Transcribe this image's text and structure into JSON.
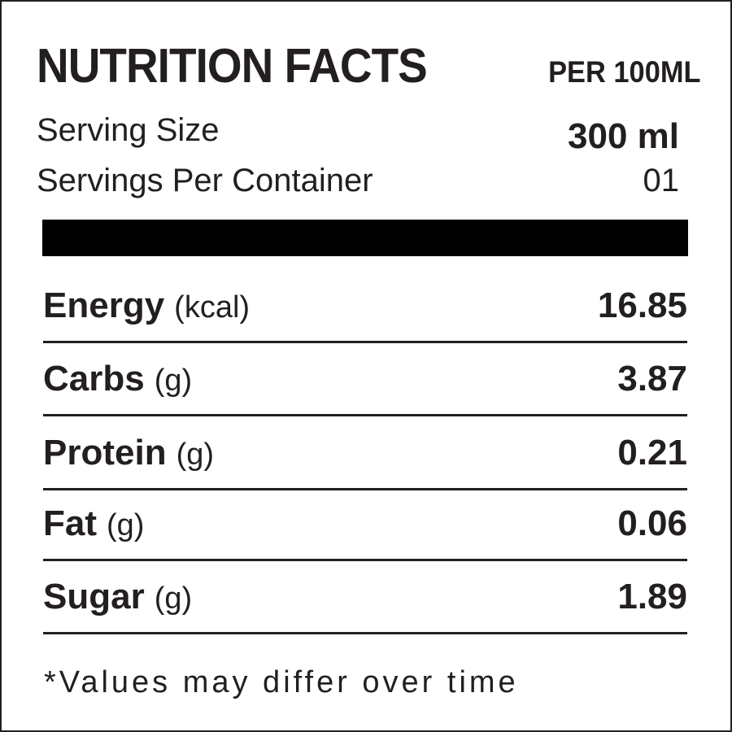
{
  "header": {
    "title": "NUTRITION FACTS",
    "subtitle": "PER 100ML"
  },
  "serving": [
    {
      "label": "Serving Size",
      "value": "300 ml"
    },
    {
      "label": "Servings Per Container",
      "value": "01"
    }
  ],
  "nutrients": [
    {
      "name": "Energy",
      "unit": "(kcal)",
      "value": "16.85"
    },
    {
      "name": "Carbs",
      "unit": "(g)",
      "value": "3.87"
    },
    {
      "name": "Protein",
      "unit": "(g)",
      "value": "0.21"
    },
    {
      "name": "Fat",
      "unit": "(g)",
      "value": "0.06"
    },
    {
      "name": "Sugar",
      "unit": "(g)",
      "value": "1.89"
    }
  ],
  "footnote": "*Values may differ over time"
}
